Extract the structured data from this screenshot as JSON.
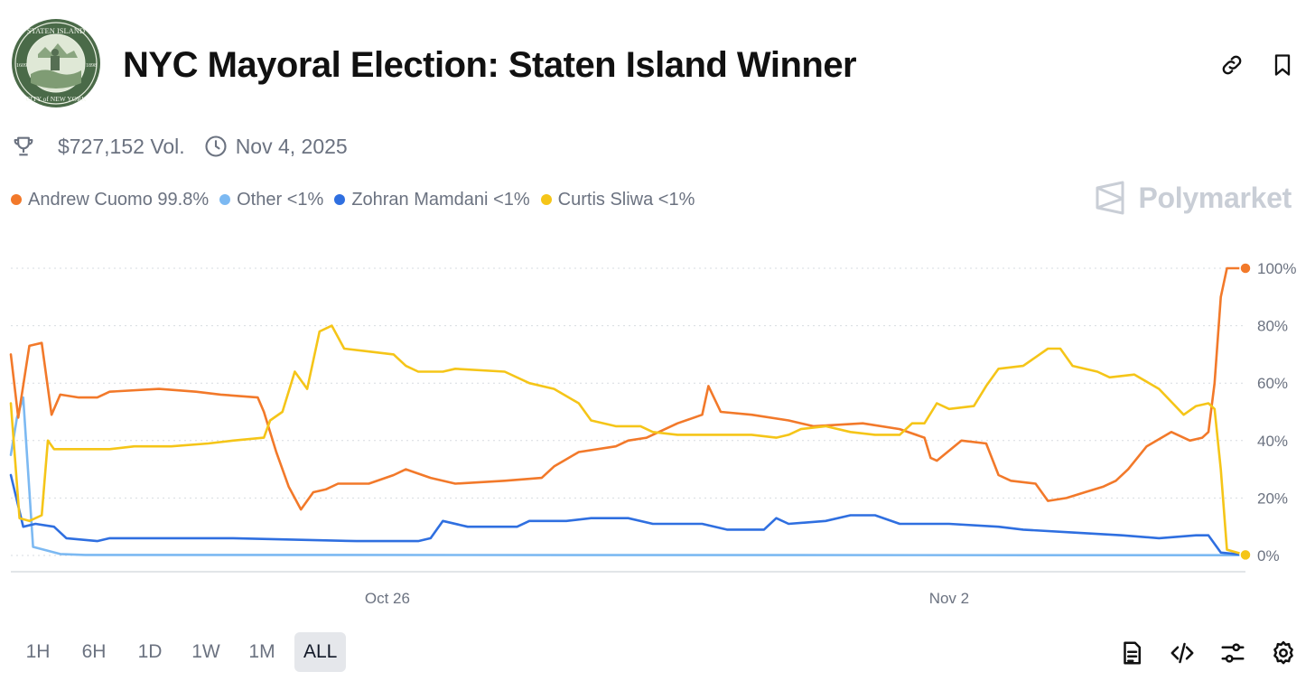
{
  "header": {
    "title": "NYC Mayoral Election: Staten Island Winner",
    "seal": {
      "top_text": "STATEN ISLAND",
      "bottom_text": "CITY of NEW YORK",
      "year_left": "1609",
      "year_right": "1898"
    }
  },
  "meta": {
    "volume": "$727,152 Vol.",
    "date": "Nov 4, 2025"
  },
  "legend": [
    {
      "name": "Andrew Cuomo",
      "value": "99.8%",
      "color": "#f2792a"
    },
    {
      "name": "Other",
      "value": "<1%",
      "color": "#7cb9f2"
    },
    {
      "name": "Zohran Mamdani",
      "value": "<1%",
      "color": "#2f6fe0"
    },
    {
      "name": "Curtis Sliwa",
      "value": "<1%",
      "color": "#f5c518"
    }
  ],
  "brand": {
    "name": "Polymarket"
  },
  "ranges": [
    "1H",
    "6H",
    "1D",
    "1W",
    "1M",
    "ALL"
  ],
  "active_range": "ALL",
  "chart_data": {
    "type": "line",
    "x_start": "Oct 20",
    "x_end": "Nov 4",
    "x_ticks": [
      {
        "label": "Oct 26",
        "t": 0.305
      },
      {
        "label": "Nov 2",
        "t": 0.76
      }
    ],
    "y_ticks": [
      "0%",
      "20%",
      "40%",
      "60%",
      "80%",
      "100%"
    ],
    "ylim": [
      0,
      100
    ],
    "series": [
      {
        "name": "Andrew Cuomo",
        "color": "#f2792a",
        "end_marker": true,
        "points": [
          [
            0,
            70
          ],
          [
            0.006,
            48
          ],
          [
            0.015,
            73
          ],
          [
            0.025,
            74
          ],
          [
            0.033,
            49
          ],
          [
            0.04,
            56
          ],
          [
            0.055,
            55
          ],
          [
            0.07,
            55
          ],
          [
            0.08,
            57
          ],
          [
            0.12,
            58
          ],
          [
            0.15,
            57
          ],
          [
            0.17,
            56
          ],
          [
            0.2,
            55
          ],
          [
            0.205,
            50
          ],
          [
            0.215,
            36
          ],
          [
            0.225,
            24
          ],
          [
            0.235,
            16
          ],
          [
            0.245,
            22
          ],
          [
            0.255,
            23
          ],
          [
            0.265,
            25
          ],
          [
            0.29,
            25
          ],
          [
            0.31,
            28
          ],
          [
            0.32,
            30
          ],
          [
            0.34,
            27
          ],
          [
            0.36,
            25
          ],
          [
            0.4,
            26
          ],
          [
            0.43,
            27
          ],
          [
            0.44,
            31
          ],
          [
            0.46,
            36
          ],
          [
            0.49,
            38
          ],
          [
            0.5,
            40
          ],
          [
            0.515,
            41
          ],
          [
            0.54,
            46
          ],
          [
            0.56,
            49
          ],
          [
            0.565,
            59
          ],
          [
            0.575,
            50
          ],
          [
            0.6,
            49
          ],
          [
            0.63,
            47
          ],
          [
            0.65,
            45
          ],
          [
            0.69,
            46
          ],
          [
            0.72,
            44
          ],
          [
            0.74,
            41
          ],
          [
            0.745,
            34
          ],
          [
            0.75,
            33
          ],
          [
            0.77,
            40
          ],
          [
            0.79,
            39
          ],
          [
            0.8,
            28
          ],
          [
            0.81,
            26
          ],
          [
            0.83,
            25
          ],
          [
            0.84,
            19
          ],
          [
            0.855,
            20
          ],
          [
            0.87,
            22
          ],
          [
            0.885,
            24
          ],
          [
            0.895,
            26
          ],
          [
            0.905,
            30
          ],
          [
            0.92,
            38
          ],
          [
            0.94,
            43
          ],
          [
            0.955,
            40
          ],
          [
            0.965,
            41
          ],
          [
            0.97,
            43
          ],
          [
            0.975,
            60
          ],
          [
            0.98,
            90
          ],
          [
            0.985,
            100
          ],
          [
            1,
            100
          ]
        ]
      },
      {
        "name": "Other",
        "color": "#7cb9f2",
        "end_marker": false,
        "points": [
          [
            0,
            35
          ],
          [
            0.005,
            48
          ],
          [
            0.01,
            55
          ],
          [
            0.018,
            3
          ],
          [
            0.04,
            0.5
          ],
          [
            0.06,
            0.2
          ],
          [
            1,
            0.1
          ]
        ]
      },
      {
        "name": "Zohran Mamdani",
        "color": "#2f6fe0",
        "end_marker": false,
        "points": [
          [
            0,
            28
          ],
          [
            0.01,
            10
          ],
          [
            0.02,
            11
          ],
          [
            0.035,
            10
          ],
          [
            0.045,
            6
          ],
          [
            0.07,
            5
          ],
          [
            0.08,
            6
          ],
          [
            0.13,
            6
          ],
          [
            0.18,
            6
          ],
          [
            0.28,
            5
          ],
          [
            0.33,
            5
          ],
          [
            0.34,
            6
          ],
          [
            0.35,
            12
          ],
          [
            0.37,
            10
          ],
          [
            0.41,
            10
          ],
          [
            0.42,
            12
          ],
          [
            0.45,
            12
          ],
          [
            0.47,
            13
          ],
          [
            0.5,
            13
          ],
          [
            0.52,
            11
          ],
          [
            0.56,
            11
          ],
          [
            0.58,
            9
          ],
          [
            0.61,
            9
          ],
          [
            0.62,
            13
          ],
          [
            0.63,
            11
          ],
          [
            0.66,
            12
          ],
          [
            0.68,
            14
          ],
          [
            0.7,
            14
          ],
          [
            0.72,
            11
          ],
          [
            0.76,
            11
          ],
          [
            0.8,
            10
          ],
          [
            0.82,
            9
          ],
          [
            0.86,
            8
          ],
          [
            0.9,
            7
          ],
          [
            0.93,
            6
          ],
          [
            0.96,
            7
          ],
          [
            0.97,
            7
          ],
          [
            0.98,
            1
          ],
          [
            1,
            0.2
          ]
        ]
      },
      {
        "name": "Curtis Sliwa",
        "color": "#f5c518",
        "end_marker": true,
        "points": [
          [
            0,
            53
          ],
          [
            0.007,
            13
          ],
          [
            0.015,
            12
          ],
          [
            0.025,
            14
          ],
          [
            0.03,
            40
          ],
          [
            0.035,
            37
          ],
          [
            0.06,
            37
          ],
          [
            0.08,
            37
          ],
          [
            0.1,
            38
          ],
          [
            0.13,
            38
          ],
          [
            0.16,
            39
          ],
          [
            0.18,
            40
          ],
          [
            0.205,
            41
          ],
          [
            0.21,
            47
          ],
          [
            0.22,
            50
          ],
          [
            0.23,
            64
          ],
          [
            0.24,
            58
          ],
          [
            0.25,
            78
          ],
          [
            0.26,
            80
          ],
          [
            0.27,
            72
          ],
          [
            0.29,
            71
          ],
          [
            0.31,
            70
          ],
          [
            0.32,
            66
          ],
          [
            0.33,
            64
          ],
          [
            0.35,
            64
          ],
          [
            0.36,
            65
          ],
          [
            0.4,
            64
          ],
          [
            0.42,
            60
          ],
          [
            0.44,
            58
          ],
          [
            0.46,
            53
          ],
          [
            0.47,
            47
          ],
          [
            0.49,
            45
          ],
          [
            0.51,
            45
          ],
          [
            0.52,
            43
          ],
          [
            0.54,
            42
          ],
          [
            0.56,
            42
          ],
          [
            0.6,
            42
          ],
          [
            0.62,
            41
          ],
          [
            0.63,
            42
          ],
          [
            0.64,
            44
          ],
          [
            0.66,
            45
          ],
          [
            0.68,
            43
          ],
          [
            0.7,
            42
          ],
          [
            0.72,
            42
          ],
          [
            0.73,
            46
          ],
          [
            0.74,
            46
          ],
          [
            0.75,
            53
          ],
          [
            0.76,
            51
          ],
          [
            0.78,
            52
          ],
          [
            0.79,
            59
          ],
          [
            0.8,
            65
          ],
          [
            0.82,
            66
          ],
          [
            0.84,
            72
          ],
          [
            0.85,
            72
          ],
          [
            0.86,
            66
          ],
          [
            0.88,
            64
          ],
          [
            0.89,
            62
          ],
          [
            0.91,
            63
          ],
          [
            0.93,
            58
          ],
          [
            0.95,
            49
          ],
          [
            0.96,
            52
          ],
          [
            0.97,
            53
          ],
          [
            0.975,
            51
          ],
          [
            0.98,
            30
          ],
          [
            0.985,
            2
          ],
          [
            1,
            0.2
          ]
        ]
      }
    ]
  }
}
